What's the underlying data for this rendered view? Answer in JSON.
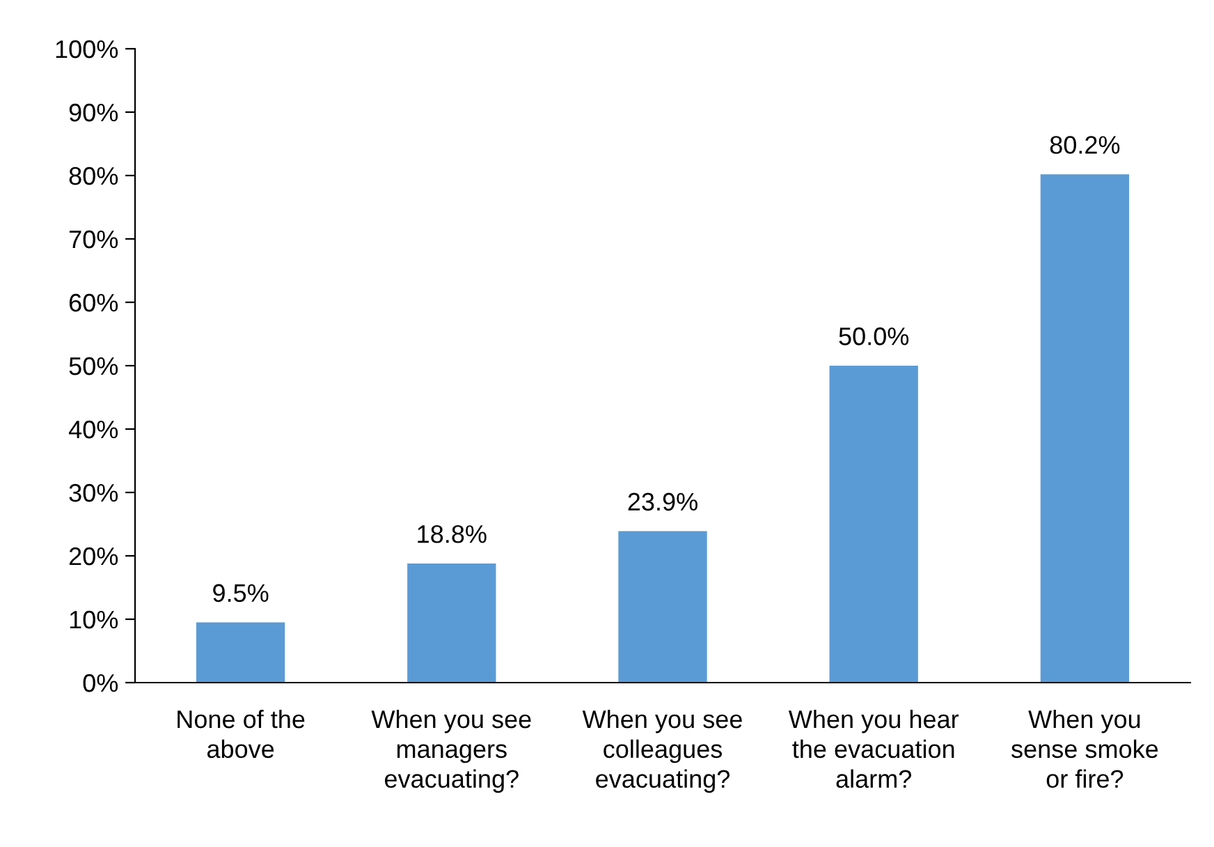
{
  "chart_data": {
    "type": "bar",
    "categories": [
      "None of the\nabove",
      "When you see\nmanagers\nevacuating?",
      "When you see\ncolleagues\nevacuating?",
      "When you hear\nthe evacuation\nalarm?",
      "When you\nsense smoke\nor fire?"
    ],
    "values": [
      9.5,
      18.8,
      23.9,
      50.0,
      80.2
    ],
    "value_labels": [
      "9.5%",
      "18.8%",
      "23.9%",
      "50.0%",
      "80.2%"
    ],
    "color": "#5b9bd5",
    "ylim": [
      0,
      100
    ],
    "yticks": [
      {
        "value": 0,
        "label": "0%"
      },
      {
        "value": 10,
        "label": "10%"
      },
      {
        "value": 20,
        "label": "20%"
      },
      {
        "value": 30,
        "label": "30%"
      },
      {
        "value": 40,
        "label": "40%"
      },
      {
        "value": 50,
        "label": "50%"
      },
      {
        "value": 60,
        "label": "60%"
      },
      {
        "value": 70,
        "label": "70%"
      },
      {
        "value": 80,
        "label": "80%"
      },
      {
        "value": 90,
        "label": "90%"
      },
      {
        "value": 100,
        "label": "100%"
      }
    ],
    "grid": false
  }
}
